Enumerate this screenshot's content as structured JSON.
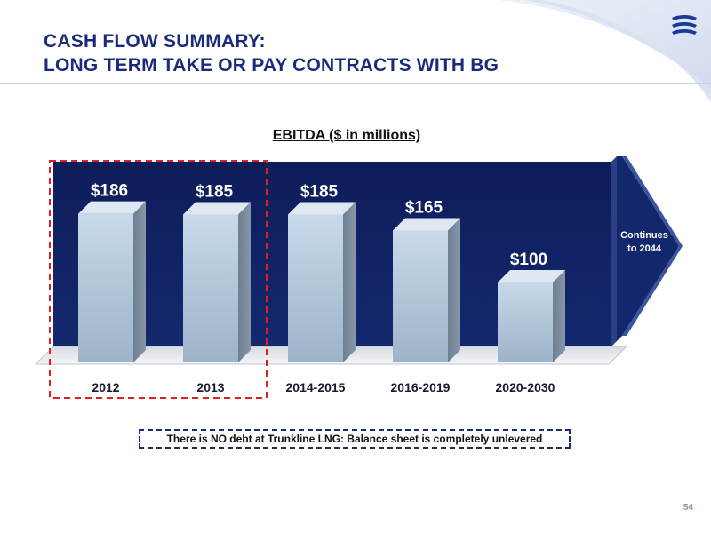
{
  "slide": {
    "title_line1": "CASH FLOW SUMMARY:",
    "title_line2": "LONG TERM TAKE OR PAY CONTRACTS WITH BG",
    "page_number": "54"
  },
  "chart_data": {
    "type": "bar",
    "title": "EBITDA ($ in millions)",
    "categories": [
      "2012",
      "2013",
      "2014-2015",
      "2016-2019",
      "2020-2030"
    ],
    "values": [
      186,
      185,
      185,
      165,
      100
    ],
    "value_labels": [
      "$186",
      "$185",
      "$185",
      "$165",
      "$100"
    ],
    "highlighted_categories": [
      "2012",
      "2013"
    ],
    "xlabel": "",
    "ylabel": "",
    "grid": false
  },
  "annotations": {
    "continuation": "Continues to 2044",
    "continuation_lines": [
      "Continues",
      "to 2044"
    ],
    "note": "There is NO debt at Trunkline LNG: Balance sheet is completely unlevered"
  },
  "colors": {
    "title": "#1a2a7a",
    "panel": "#0f2060",
    "bar_front": "#b3c8dc",
    "highlight_border": "#e02020",
    "note_border": "#1a2a7a"
  }
}
